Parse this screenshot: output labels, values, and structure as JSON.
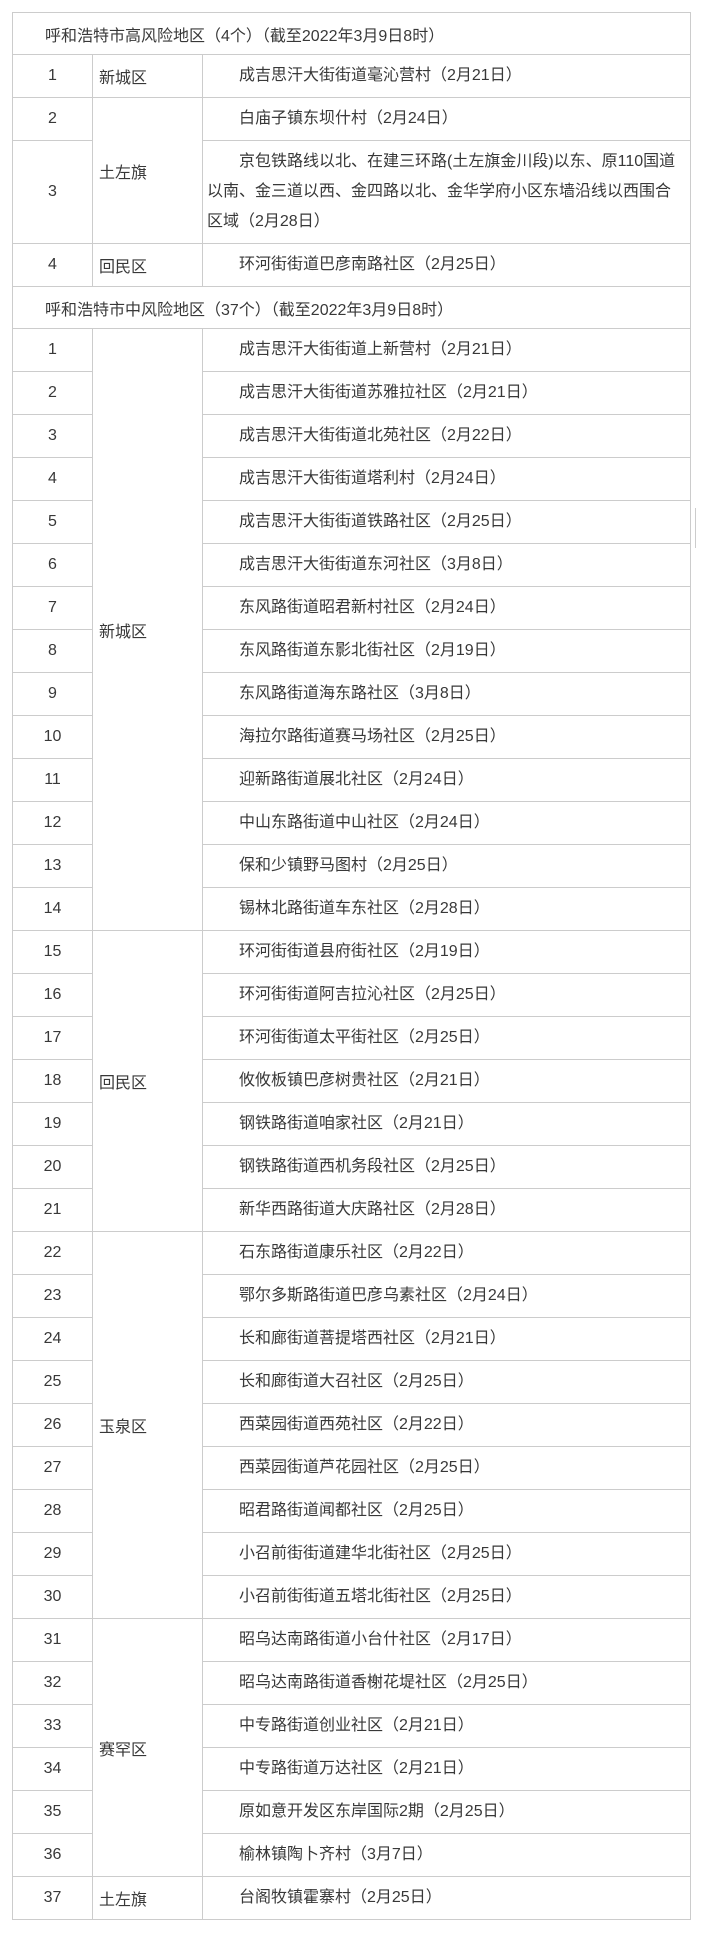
{
  "colors": {
    "border": "#cccccc",
    "text": "#383838",
    "background": "#ffffff"
  },
  "sections": [
    {
      "title": "呼和浩特市高风险地区（4个）（截至2022年3月9日8时）",
      "rows": [
        {
          "num": "1",
          "district": "新城区",
          "district_rowspan": 1,
          "area": "成吉思汗大街街道毫沁营村（2月21日）"
        },
        {
          "num": "2",
          "district": "土左旗",
          "district_rowspan": 2,
          "area": "白庙子镇东坝什村（2月24日）"
        },
        {
          "num": "3",
          "area": "京包铁路线以北、在建三环路(土左旗金川段)以东、原110国道以南、金三道以西、金四路以北、金华学府小区东墙沿线以西围合区域（2月28日）"
        },
        {
          "num": "4",
          "district": "回民区",
          "district_rowspan": 1,
          "area": "环河街街道巴彦南路社区（2月25日）"
        }
      ]
    },
    {
      "title": "呼和浩特市中风险地区（37个）（截至2022年3月9日8时）",
      "rows": [
        {
          "num": "1",
          "district": "新城区",
          "district_rowspan": 14,
          "area": "成吉思汗大街街道上新营村（2月21日）"
        },
        {
          "num": "2",
          "area": "成吉思汗大街街道苏雅拉社区（2月21日）"
        },
        {
          "num": "3",
          "area": "成吉思汗大街街道北苑社区（2月22日）"
        },
        {
          "num": "4",
          "area": "成吉思汗大街街道塔利村（2月24日）"
        },
        {
          "num": "5",
          "area": "成吉思汗大街街道铁路社区（2月25日）"
        },
        {
          "num": "6",
          "area": "成吉思汗大街街道东河社区（3月8日）"
        },
        {
          "num": "7",
          "area": "东风路街道昭君新村社区（2月24日）"
        },
        {
          "num": "8",
          "area": "东风路街道东影北街社区（2月19日）"
        },
        {
          "num": "9",
          "area": "东风路街道海东路社区（3月8日）"
        },
        {
          "num": "10",
          "area": "海拉尔路街道赛马场社区（2月25日）"
        },
        {
          "num": "11",
          "area": "迎新路街道展北社区（2月24日）"
        },
        {
          "num": "12",
          "area": "中山东路街道中山社区（2月24日）"
        },
        {
          "num": "13",
          "area": "保和少镇野马图村（2月25日）"
        },
        {
          "num": "14",
          "area": "锡林北路街道车东社区（2月28日）"
        },
        {
          "num": "15",
          "district": "回民区",
          "district_rowspan": 7,
          "area": "环河街街道县府街社区（2月19日）"
        },
        {
          "num": "16",
          "area": "环河街街道阿吉拉沁社区（2月25日）"
        },
        {
          "num": "17",
          "area": "环河街街道太平街社区（2月25日）"
        },
        {
          "num": "18",
          "area": "攸攸板镇巴彦树贵社区（2月21日）"
        },
        {
          "num": "19",
          "area": "钢铁路街道咱家社区（2月21日）"
        },
        {
          "num": "20",
          "area": "钢铁路街道西机务段社区（2月25日）"
        },
        {
          "num": "21",
          "area": "新华西路街道大庆路社区（2月28日）"
        },
        {
          "num": "22",
          "district": "玉泉区",
          "district_rowspan": 9,
          "area": "石东路街道康乐社区（2月22日）"
        },
        {
          "num": "23",
          "area": "鄂尔多斯路街道巴彦乌素社区（2月24日）"
        },
        {
          "num": "24",
          "area": "长和廊街道菩提塔西社区（2月21日）"
        },
        {
          "num": "25",
          "area": "长和廊街道大召社区（2月25日）"
        },
        {
          "num": "26",
          "area": "西菜园街道西苑社区（2月22日）"
        },
        {
          "num": "27",
          "area": "西菜园街道芦花园社区（2月25日）"
        },
        {
          "num": "28",
          "area": "昭君路街道闻都社区（2月25日）"
        },
        {
          "num": "29",
          "area": "小召前街街道建华北街社区（2月25日）"
        },
        {
          "num": "30",
          "area": "小召前街街道五塔北街社区（2月25日）"
        },
        {
          "num": "31",
          "district": "赛罕区",
          "district_rowspan": 6,
          "area": "昭乌达南路街道小台什社区（2月17日）"
        },
        {
          "num": "32",
          "area": "昭乌达南路街道香榭花堤社区（2月25日）"
        },
        {
          "num": "33",
          "area": "中专路街道创业社区（2月21日）"
        },
        {
          "num": "34",
          "area": "中专路街道万达社区（2月21日）"
        },
        {
          "num": "35",
          "area": "原如意开发区东岸国际2期（2月25日）"
        },
        {
          "num": "36",
          "area": "榆林镇陶卜齐村（3月7日）"
        },
        {
          "num": "37",
          "district": "土左旗",
          "district_rowspan": 1,
          "area": "台阁牧镇霍寨村（2月25日）"
        }
      ]
    }
  ]
}
